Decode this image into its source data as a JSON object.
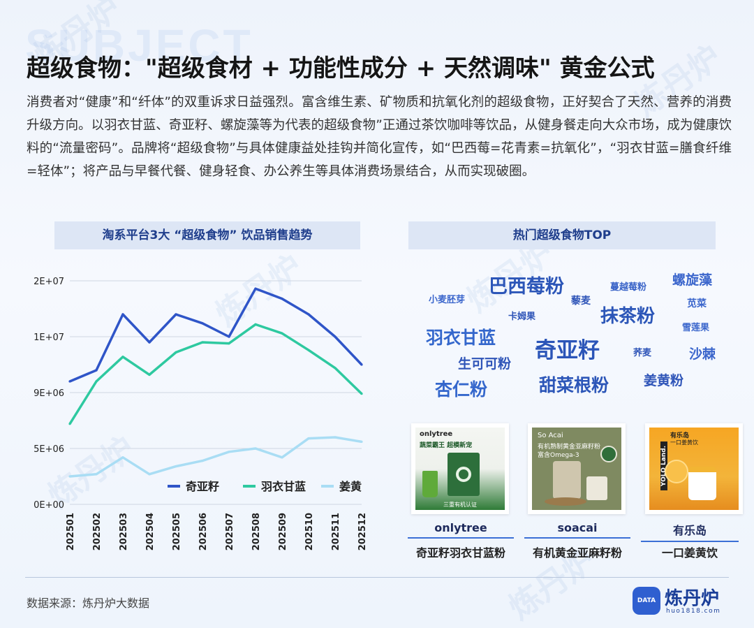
{
  "header": {
    "bg_word": "SUBJECT",
    "title": "超级食物：\"超级食材 + 功能性成分 + 天然调味\" 黄金公式",
    "intro": "消费者对“健康”和“纤体”的双重诉求日益强烈。富含维生素、矿物质和抗氧化剂的超级食物，正好契合了天然、营养的消费升级方向。以羽衣甘蓝、奇亚籽、螺旋藻等为代表的超级食物”正通过茶饮咖啡等饮品，从健身餐走向大众市场，成为健康饮料的“流量密码”。品牌将“超级食物”与具体健康益处挂钩并简化宣传，如“巴西莓=花青素=抗氧化”，“羽衣甘蓝=膳食纤维=轻体”；将产品与早餐代餐、健身轻食、办公养生等具体消费场景结合，从而实现破圈。"
  },
  "watermark_text": "炼丹炉",
  "chart_section": {
    "title": "淘系平台3大 “超级食物” 饮品销售趋势"
  },
  "cloud_section": {
    "title": "热门超级食物TOP"
  },
  "chart_data": {
    "type": "line",
    "title": "淘系平台3大 “超级食物” 饮品销售趋势",
    "x": [
      "202501",
      "202502",
      "202503",
      "202504",
      "202505",
      "202506",
      "202507",
      "202508",
      "202509",
      "202510",
      "202511",
      "202512"
    ],
    "yticks": [
      "0E+00",
      "5E+06",
      "9E+06",
      "1E+07",
      "2E+07"
    ],
    "ylim": [
      0,
      20000000
    ],
    "grid": true,
    "legend_position": "bottom-right",
    "series": [
      {
        "name": "奇亚籽",
        "color": "#2f55c8",
        "values": [
          11000000,
          12000000,
          17000000,
          14500000,
          17000000,
          16200000,
          15000000,
          19300000,
          18400000,
          17000000,
          15000000,
          12500000
        ]
      },
      {
        "name": "羽衣甘蓝",
        "color": "#2ec9a0",
        "values": [
          7200000,
          11000000,
          13200000,
          11600000,
          13600000,
          14500000,
          14400000,
          16100000,
          15300000,
          13800000,
          12200000,
          9900000
        ]
      },
      {
        "name": "姜黄",
        "color": "#a9ddf4",
        "values": [
          2500000,
          2700000,
          4200000,
          2700000,
          3400000,
          3900000,
          4700000,
          5000000,
          4200000,
          5900000,
          6000000,
          5600000
        ]
      }
    ]
  },
  "word_cloud": [
    {
      "text": "巴西莓粉",
      "color": "#2c56b8",
      "size": 27
    },
    {
      "text": "蔓越莓粉",
      "color": "#3a64c8",
      "size": 13
    },
    {
      "text": "螺旋藻",
      "color": "#3b66cc",
      "size": 19
    },
    {
      "text": "小麦胚芽",
      "color": "#3b66cc",
      "size": 13
    },
    {
      "text": "藜麦",
      "color": "#2f55b8",
      "size": 14
    },
    {
      "text": "苋菜",
      "color": "#3b66cc",
      "size": 14
    },
    {
      "text": "卡姆果",
      "color": "#2f55b8",
      "size": 13
    },
    {
      "text": "抹茶粉",
      "color": "#2c56b8",
      "size": 26
    },
    {
      "text": "雪莲果",
      "color": "#3b66cc",
      "size": 13
    },
    {
      "text": "羽衣甘蓝",
      "color": "#3467cc",
      "size": 25
    },
    {
      "text": "奇亚籽",
      "color": "#2b55b8",
      "size": 31
    },
    {
      "text": "荞麦",
      "color": "#2f55b8",
      "size": 13
    },
    {
      "text": "沙棘",
      "color": "#3b66cc",
      "size": 19
    },
    {
      "text": "生可可粉",
      "color": "#2f55b8",
      "size": 19
    },
    {
      "text": "杏仁粉",
      "color": "#3467cc",
      "size": 25
    },
    {
      "text": "甜菜根粉",
      "color": "#2c56b8",
      "size": 25
    },
    {
      "text": "姜黄粉",
      "color": "#2f55b8",
      "size": 19
    }
  ],
  "products": [
    {
      "brand": "onlytree",
      "desc": "奇亚籽羽衣甘蓝粉",
      "img": {
        "logo": "onlytree",
        "headline": "蔬菜霸王 超模新宠",
        "sub": "三重有机认证"
      }
    },
    {
      "brand": "soacai",
      "desc": "有机黄金亚麻籽粉",
      "img": {
        "logo": "So Acai",
        "headline": "有机熟制黄金亚麻籽粉",
        "sub": "富含Omega-3"
      }
    },
    {
      "brand": "有乐岛",
      "desc": "一口姜黄饮",
      "img": {
        "logo": "YOLO Land.",
        "headline": "有乐岛",
        "sub": "一口姜黄饮"
      }
    }
  ],
  "footer": {
    "source": "数据来源：炼丹炉大数据",
    "logo_icon": "DATA",
    "logo_name": "炼丹炉",
    "logo_url": "huo1818.com"
  }
}
